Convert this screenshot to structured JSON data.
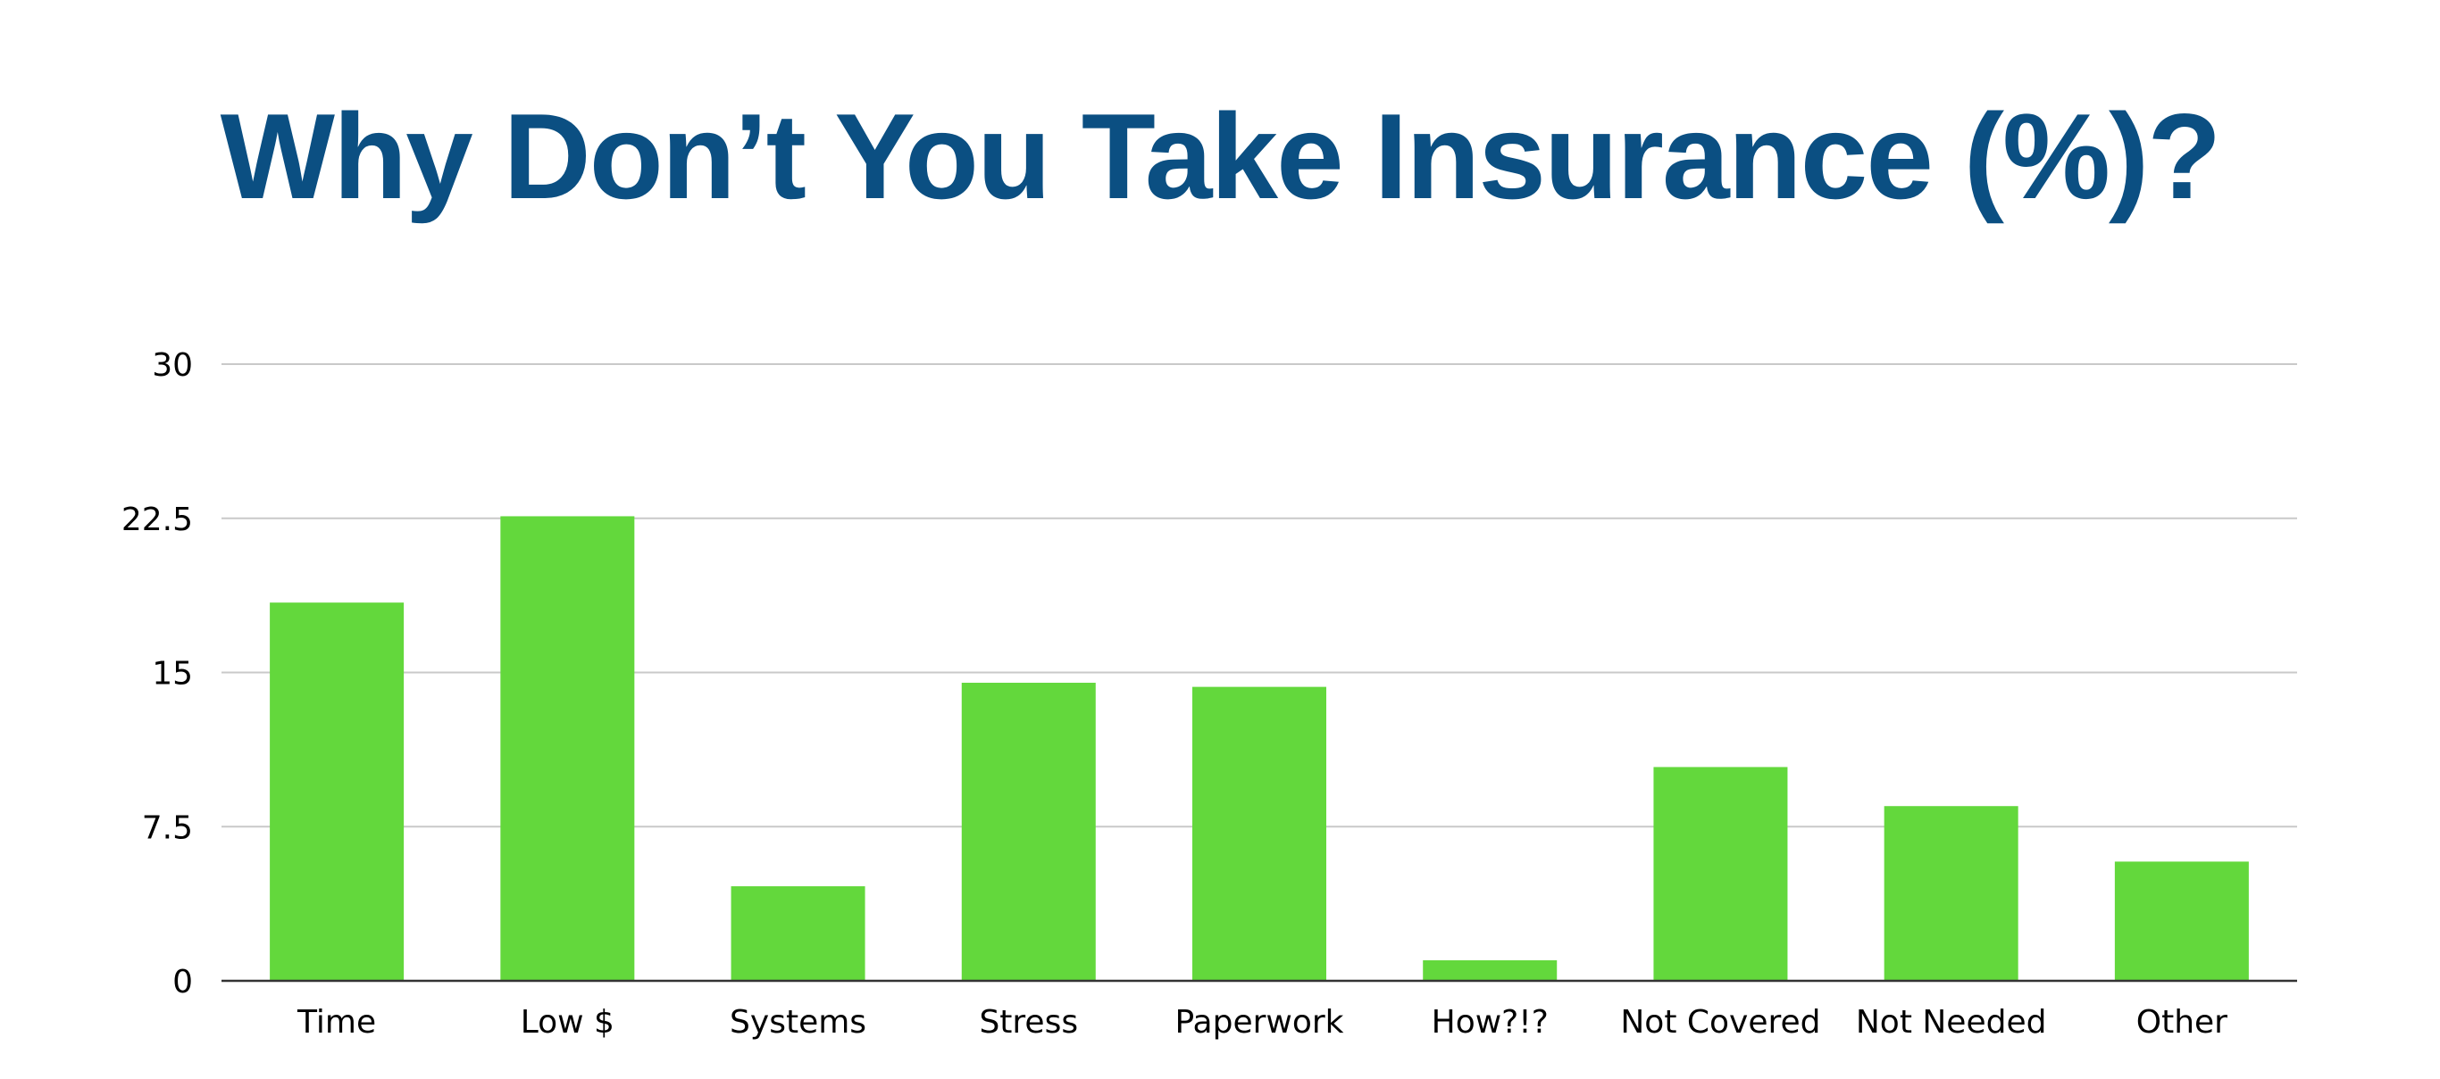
{
  "colors": {
    "title": "#0b4f82",
    "bar": "#63d83c",
    "grid": "#c9c9c9",
    "axis": "#333333",
    "text": "#000000"
  },
  "chart_data": {
    "type": "bar",
    "title": "Why Don’t You Take Insurance (%)?",
    "xlabel": "",
    "ylabel": "",
    "categories": [
      "Time",
      "Low $",
      "Systems",
      "Stress",
      "Paperwork",
      "How?!?",
      "Not Covered",
      "Not Needed",
      "Other"
    ],
    "values": [
      18.4,
      22.6,
      4.6,
      14.5,
      14.3,
      1.0,
      10.4,
      8.5,
      5.8
    ],
    "ylim": [
      0,
      30
    ],
    "yticks": [
      0,
      7.5,
      15,
      22.5,
      30
    ],
    "ytick_labels": [
      "0",
      "7.5",
      "15",
      "22.5",
      "30"
    ],
    "grid": true,
    "legend": "none"
  }
}
